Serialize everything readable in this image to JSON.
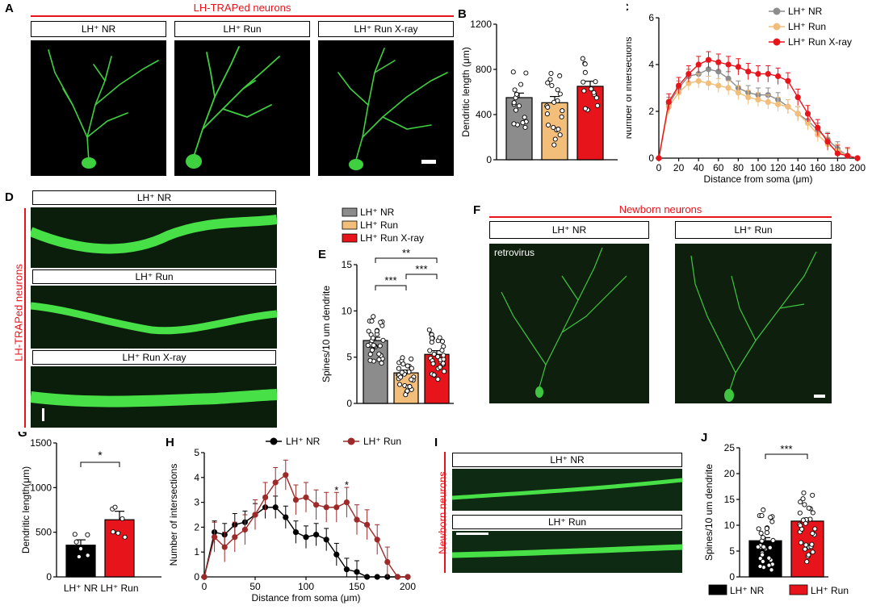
{
  "panels": {
    "A": {
      "label": "A",
      "title": "LH-TRAPed neurons",
      "groups": [
        "LH⁺ NR",
        "LH⁺ Run",
        "LH⁺ Run X-ray"
      ]
    },
    "D": {
      "label": "D",
      "side_title": "LH-TRAPed neurons",
      "groups": [
        "LH⁺ NR",
        "LH⁺ Run",
        "LH⁺ Run X-ray"
      ]
    },
    "F": {
      "label": "F",
      "title": "Newborn neurons",
      "groups": [
        "LH⁺ NR",
        "LH⁺ Run"
      ],
      "annotation": "retrovirus"
    },
    "I": {
      "label": "I",
      "side_title": "Newborn neurons",
      "groups": [
        "LH⁺ NR",
        "LH⁺ Run"
      ]
    }
  },
  "colors": {
    "gray": "#8c8c8c",
    "orange": "#f3bd7a",
    "red": "#e8141c",
    "black": "#000000",
    "darkred": "#9d2a2a"
  },
  "chart_data": [
    {
      "id": "B",
      "label": "B",
      "type": "bar",
      "ylabel": "Dendritic length (μm)",
      "ylim": [
        0,
        1200
      ],
      "yticks": [
        0,
        400,
        800,
        1200
      ],
      "categories": [
        "LH⁺ NR",
        "LH⁺ Run",
        "LH⁺ Run X-ray"
      ],
      "values": [
        550,
        505,
        650
      ],
      "sem": [
        40,
        55,
        45
      ]
    },
    {
      "id": "C",
      "label": "C",
      "type": "line",
      "xlabel": "Distance from soma (μm)",
      "ylabel": "Number of intersections",
      "xlim": [
        0,
        200
      ],
      "ylim": [
        0,
        6
      ],
      "xticks": [
        0,
        20,
        40,
        60,
        80,
        100,
        120,
        140,
        160,
        180,
        200
      ],
      "yticks": [
        0,
        2,
        4,
        6
      ],
      "x": [
        0,
        10,
        20,
        30,
        40,
        50,
        60,
        70,
        80,
        90,
        100,
        110,
        120,
        130,
        140,
        150,
        160,
        170,
        180,
        190,
        200
      ],
      "series": [
        {
          "name": "LH⁺ NR",
          "values": [
            0,
            2.3,
            3.0,
            3.5,
            3.6,
            3.8,
            3.7,
            3.4,
            3.0,
            2.8,
            2.7,
            2.7,
            2.5,
            2.2,
            1.9,
            1.6,
            1.2,
            0.8,
            0.4,
            0.1,
            0
          ]
        },
        {
          "name": "LH⁺ Run",
          "values": [
            0,
            2.2,
            2.8,
            3.2,
            3.3,
            3.2,
            3.1,
            3.0,
            2.8,
            2.6,
            2.5,
            2.4,
            2.3,
            2.2,
            1.9,
            1.5,
            1.0,
            0.6,
            0.3,
            0.1,
            0
          ]
        },
        {
          "name": "LH⁺ Run X-ray",
          "values": [
            0,
            2.4,
            3.1,
            3.6,
            4.0,
            4.2,
            4.1,
            4.0,
            3.9,
            3.7,
            3.6,
            3.6,
            3.5,
            3.3,
            2.6,
            1.9,
            1.3,
            0.7,
            0.2,
            0.1,
            0
          ]
        }
      ]
    },
    {
      "id": "E",
      "label": "E",
      "type": "bar",
      "ylabel": "Spines/10 um dendrite",
      "ylim": [
        0,
        15
      ],
      "yticks": [
        0,
        5,
        10,
        15
      ],
      "categories": [
        "LH⁺ NR",
        "LH⁺ Run",
        "LH⁺ Run X-ray"
      ],
      "values": [
        6.8,
        3.3,
        5.3
      ],
      "sem": [
        0.35,
        0.3,
        0.4
      ],
      "significance": [
        "***",
        "***",
        "**"
      ]
    },
    {
      "id": "G",
      "label": "G",
      "type": "bar",
      "ylabel": "Dendritic length(μm)",
      "ylim": [
        0,
        1500
      ],
      "yticks": [
        0,
        500,
        1000,
        1500
      ],
      "categories": [
        "LH⁺ NR",
        "LH⁺ Run"
      ],
      "values": [
        355,
        640
      ],
      "sem": [
        60,
        95
      ],
      "significance": [
        "*"
      ]
    },
    {
      "id": "H",
      "label": "H",
      "type": "line",
      "xlabel": "Distance from soma (μm)",
      "ylabel": "Number of intersections",
      "xlim": [
        0,
        200
      ],
      "ylim": [
        0,
        5
      ],
      "xticks": [
        0,
        50,
        100,
        150,
        200
      ],
      "yticks": [
        0,
        1,
        2,
        3,
        4,
        5
      ],
      "x": [
        0,
        10,
        20,
        30,
        40,
        50,
        60,
        70,
        80,
        90,
        100,
        110,
        120,
        130,
        140,
        150,
        160,
        170,
        180,
        190,
        200
      ],
      "series": [
        {
          "name": "LH⁺ NR",
          "values": [
            0,
            1.8,
            1.7,
            2.1,
            2.2,
            2.5,
            2.8,
            2.8,
            2.4,
            1.8,
            1.6,
            1.7,
            1.5,
            0.9,
            0.3,
            0.2,
            0,
            0,
            0,
            0,
            0
          ]
        },
        {
          "name": "LH⁺ Run",
          "values": [
            0,
            1.6,
            1.2,
            1.6,
            1.9,
            2.5,
            3.2,
            3.8,
            4.1,
            3.1,
            3.2,
            2.9,
            2.8,
            2.8,
            3.0,
            2.3,
            2.1,
            1.5,
            0.6,
            0,
            0
          ]
        }
      ],
      "significance": [
        "*",
        "*"
      ]
    },
    {
      "id": "J",
      "label": "J",
      "type": "bar",
      "ylabel": "Spines/10 um dendrite",
      "ylim": [
        0,
        25
      ],
      "yticks": [
        0,
        5,
        10,
        15,
        20,
        25
      ],
      "categories": [
        "LH⁺ NR",
        "LH⁺ Run"
      ],
      "values": [
        7.0,
        10.8
      ],
      "sem": [
        0.6,
        0.6
      ],
      "significance": [
        "***"
      ]
    }
  ]
}
